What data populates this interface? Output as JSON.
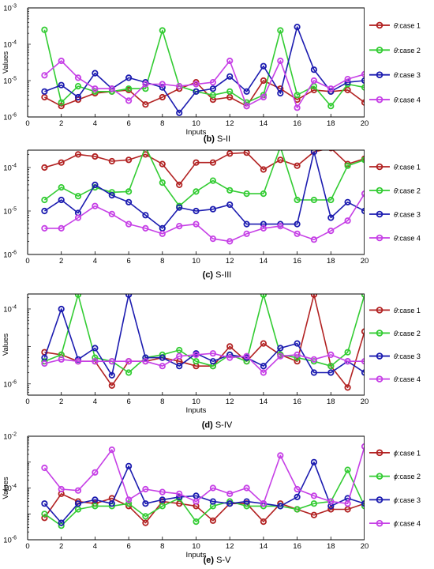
{
  "chart_data": [
    {
      "type": "line",
      "caption_tag": "(b)",
      "caption_text": "S-II",
      "xlabel": "Inputs",
      "ylabel": "Values",
      "xlim": [
        0,
        20
      ],
      "xticks": [
        0,
        2,
        4,
        6,
        8,
        10,
        12,
        14,
        16,
        18,
        20
      ],
      "yscale": "log",
      "ylim_exp": [
        -6,
        -3
      ],
      "yticks": [
        {
          "exp": -6,
          "label": "10",
          "sup": "-6"
        },
        {
          "exp": -5,
          "label": "10",
          "sup": "-5"
        },
        {
          "exp": -4,
          "label": "10",
          "sup": "-4"
        },
        {
          "exp": -3,
          "label": "10",
          "sup": "-3"
        }
      ],
      "legend_position": "right",
      "x": [
        1,
        2,
        3,
        4,
        5,
        6,
        7,
        8,
        9,
        10,
        11,
        12,
        13,
        14,
        15,
        16,
        17,
        18,
        19,
        20
      ],
      "series": [
        {
          "name": "case 1",
          "symbol": "θ",
          "color": "#b22222",
          "values": [
            3.5e-06,
            2e-06,
            3e-06,
            4.5e-06,
            5e-06,
            5.5e-06,
            2.2e-06,
            3.5e-06,
            6e-06,
            9e-06,
            3e-06,
            3.5e-06,
            2e-06,
            1e-05,
            6e-06,
            3e-06,
            5.5e-06,
            5e-06,
            5.5e-06,
            2.5e-06
          ]
        },
        {
          "name": "case 2",
          "symbol": "θ",
          "color": "#33cc33",
          "values": [
            0.00025,
            2.5e-06,
            7e-06,
            5e-06,
            5e-06,
            6e-06,
            6e-06,
            0.00024,
            7e-06,
            5e-06,
            4e-06,
            5e-06,
            2.5e-06,
            4e-06,
            0.00024,
            4e-06,
            7e-06,
            2e-06,
            8e-06,
            6.5e-06
          ]
        },
        {
          "name": "case 3",
          "symbol": "θ",
          "color": "#1c1cb0",
          "values": [
            5e-06,
            7.5e-06,
            3.5e-06,
            1.6e-05,
            6e-06,
            1.2e-05,
            9e-06,
            6.5e-06,
            1.3e-06,
            5e-06,
            6e-06,
            1.3e-05,
            5e-06,
            2.5e-05,
            4.5e-06,
            0.0003,
            2e-05,
            5e-06,
            9e-06,
            1e-05
          ]
        },
        {
          "name": "case 4",
          "symbol": "θ",
          "color": "#c640e6",
          "values": [
            1.4e-05,
            3.5e-05,
            1.2e-05,
            6e-06,
            6e-06,
            2.8e-06,
            8e-06,
            8e-06,
            7e-06,
            8e-06,
            9e-06,
            3.5e-05,
            2e-06,
            3.5e-06,
            3.5e-05,
            1.8e-06,
            1e-05,
            6e-06,
            1.1e-05,
            1.5e-05
          ]
        }
      ]
    },
    {
      "type": "line",
      "caption_tag": "(c)",
      "caption_text": "S-III",
      "xlabel": "",
      "ylabel": "",
      "xlim": [
        0,
        20
      ],
      "xticks": [
        0,
        2,
        4,
        6,
        8,
        10,
        12,
        14,
        16,
        18,
        20
      ],
      "yscale": "log",
      "ylim_exp": [
        -6,
        -3.6
      ],
      "yticks": [
        {
          "exp": -6,
          "label": "10",
          "sup": "-6"
        },
        {
          "exp": -5,
          "label": "10",
          "sup": "-5"
        },
        {
          "exp": -4,
          "label": "10",
          "sup": "-4"
        }
      ],
      "legend_position": "right",
      "x": [
        1,
        2,
        3,
        4,
        5,
        6,
        7,
        8,
        9,
        10,
        11,
        12,
        13,
        14,
        15,
        16,
        17,
        18,
        19,
        20
      ],
      "series": [
        {
          "name": "case 1",
          "symbol": "θ",
          "color": "#b22222",
          "values": [
            0.0001,
            0.00013,
            0.0002,
            0.00018,
            0.00014,
            0.00015,
            0.0002,
            0.00012,
            4e-05,
            0.00013,
            0.00013,
            0.00021,
            0.00022,
            9e-05,
            0.00015,
            0.00011,
            0.00023,
            0.00028,
            0.00012,
            0.00016
          ]
        },
        {
          "name": "case 2",
          "symbol": "θ",
          "color": "#33cc33",
          "values": [
            1.8e-05,
            3.5e-05,
            2.2e-05,
            3.5e-05,
            2.7e-05,
            2.8e-05,
            0.0003,
            4.5e-05,
            1.3e-05,
            2.8e-05,
            5e-05,
            3e-05,
            2.5e-05,
            2.5e-05,
            0.0003,
            1.8e-05,
            1.8e-05,
            1.8e-05,
            0.00011,
            0.00015
          ]
        },
        {
          "name": "case 3",
          "symbol": "θ",
          "color": "#1c1cb0",
          "values": [
            1e-05,
            1.8e-05,
            9e-06,
            4e-05,
            2.3e-05,
            1.6e-05,
            8e-06,
            4e-06,
            1.2e-05,
            1e-05,
            1.1e-05,
            1.4e-05,
            5e-06,
            5e-06,
            5e-06,
            5e-06,
            0.00023,
            7e-06,
            1.6e-05,
            1e-05
          ]
        },
        {
          "name": "case 4",
          "symbol": "θ",
          "color": "#c640e6",
          "values": [
            4e-06,
            4e-06,
            7e-06,
            1.3e-05,
            8.5e-06,
            5e-06,
            4e-06,
            3e-06,
            4.5e-06,
            5e-06,
            2.3e-06,
            2e-06,
            3e-06,
            4e-06,
            4.5e-06,
            3e-06,
            2.2e-06,
            3.5e-06,
            6e-06,
            2.5e-05
          ]
        }
      ]
    },
    {
      "type": "line",
      "caption_tag": "(d)",
      "caption_text": "S-IV",
      "xlabel": "Inputs",
      "ylabel": "Values",
      "xlim": [
        0,
        20
      ],
      "xticks": [
        0,
        2,
        4,
        6,
        8,
        10,
        12,
        14,
        16,
        18,
        20
      ],
      "yscale": "log",
      "ylim_exp": [
        -6.3,
        -3.6
      ],
      "yticks": [
        {
          "exp": -6,
          "label": "10",
          "sup": "-6"
        },
        {
          "exp": -4,
          "label": "10",
          "sup": "-4"
        }
      ],
      "legend_position": "right",
      "x": [
        1,
        2,
        3,
        4,
        5,
        6,
        7,
        8,
        9,
        10,
        11,
        12,
        13,
        14,
        15,
        16,
        17,
        18,
        19,
        20
      ],
      "series": [
        {
          "name": "case 1",
          "symbol": "θ",
          "color": "#b22222",
          "values": [
            7e-06,
            6e-06,
            4e-06,
            4e-06,
            9e-07,
            4e-06,
            4e-06,
            5e-06,
            4e-06,
            3e-06,
            3e-06,
            1e-05,
            4e-06,
            1.2e-05,
            6e-06,
            4e-06,
            0.00024,
            3e-06,
            8e-07,
            2.5e-05
          ]
        },
        {
          "name": "case 2",
          "symbol": "θ",
          "color": "#33cc33",
          "values": [
            4e-06,
            6e-06,
            0.00024,
            5e-06,
            4e-06,
            2e-06,
            5e-06,
            6e-06,
            8e-06,
            4e-06,
            3e-06,
            6e-06,
            4e-06,
            0.00024,
            6e-06,
            5e-06,
            4e-06,
            3e-06,
            7e-06,
            0.00024
          ]
        },
        {
          "name": "case 3",
          "symbol": "θ",
          "color": "#1c1cb0",
          "values": [
            5e-06,
            0.0001,
            4.5e-06,
            9e-06,
            1.7e-06,
            0.00024,
            5e-06,
            5e-06,
            3e-06,
            6.5e-06,
            4e-06,
            6e-06,
            5e-06,
            3e-06,
            9e-06,
            1.2e-05,
            2e-06,
            2e-06,
            4e-06,
            2e-06
          ]
        },
        {
          "name": "case 4",
          "symbol": "θ",
          "color": "#c640e6",
          "values": [
            3.5e-06,
            4.5e-06,
            4e-06,
            4e-06,
            4e-06,
            4e-06,
            4e-06,
            3e-06,
            5.5e-06,
            6e-06,
            6.5e-06,
            5e-06,
            5.5e-06,
            2e-06,
            5.5e-06,
            6e-06,
            4.5e-06,
            6e-06,
            4e-06,
            4e-06
          ]
        }
      ]
    },
    {
      "type": "line",
      "caption_tag": "(e)",
      "caption_text": "S-V",
      "xlabel": "Inputs",
      "ylabel": "Values",
      "xlim": [
        0,
        20
      ],
      "xticks": [
        0,
        2,
        4,
        6,
        8,
        10,
        12,
        14,
        16,
        18,
        20
      ],
      "yscale": "log",
      "ylim_exp": [
        -6,
        -2
      ],
      "yticks": [
        {
          "exp": -6,
          "label": "10",
          "sup": "-6"
        },
        {
          "exp": -4,
          "label": "10",
          "sup": "-4"
        },
        {
          "exp": -2,
          "label": "10",
          "sup": "-2"
        }
      ],
      "legend_position": "right",
      "x": [
        1,
        2,
        3,
        4,
        5,
        6,
        7,
        8,
        9,
        10,
        11,
        12,
        13,
        14,
        15,
        16,
        17,
        18,
        19,
        20
      ],
      "series": [
        {
          "name": "case 1",
          "symbol": "ϕ",
          "color": "#b22222",
          "values": [
            7e-06,
            6e-05,
            3e-05,
            2.5e-05,
            4e-05,
            2e-05,
            4.5e-06,
            3e-05,
            2.5e-05,
            2e-05,
            5.5e-06,
            2.5e-05,
            2.5e-05,
            5e-06,
            2.5e-05,
            1.5e-05,
            9e-06,
            1.5e-05,
            1.5e-05,
            2.5e-05
          ]
        },
        {
          "name": "case 2",
          "symbol": "ϕ",
          "color": "#33cc33",
          "values": [
            1e-05,
            3.5e-06,
            1.5e-05,
            2e-05,
            2e-05,
            2.5e-05,
            8e-06,
            2e-05,
            4e-05,
            5e-06,
            2e-05,
            3e-05,
            2e-05,
            2e-05,
            2e-05,
            1.5e-05,
            2.5e-05,
            3e-05,
            0.0005,
            2e-05
          ]
        },
        {
          "name": "case 3",
          "symbol": "ϕ",
          "color": "#1c1cb0",
          "values": [
            2.5e-05,
            4.5e-06,
            2.5e-05,
            3.5e-05,
            2.5e-05,
            0.0007,
            2.5e-05,
            3.5e-05,
            4.5e-05,
            5e-05,
            3e-05,
            2.5e-05,
            3e-05,
            2.5e-05,
            2e-05,
            4.5e-05,
            0.001,
            2e-05,
            4e-05,
            2.5e-05
          ]
        },
        {
          "name": "case 4",
          "symbol": "ϕ",
          "color": "#c640e6",
          "values": [
            0.0006,
            9e-05,
            8e-05,
            0.0004,
            0.003,
            3.5e-05,
            9e-05,
            7e-05,
            6e-05,
            3e-05,
            0.0001,
            6e-05,
            0.0001,
            2.5e-05,
            0.0018,
            9e-05,
            5e-05,
            3e-05,
            2.5e-05,
            0.004
          ]
        }
      ]
    }
  ]
}
